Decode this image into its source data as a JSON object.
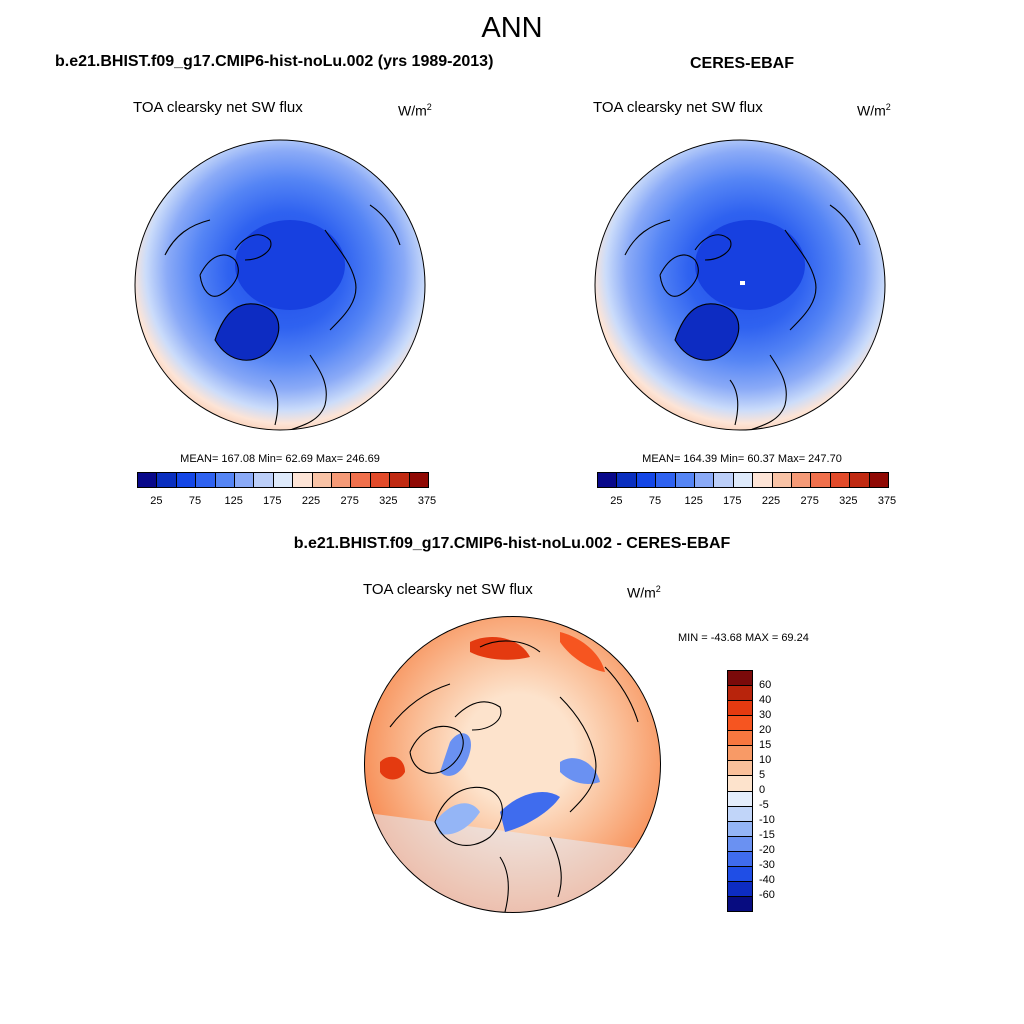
{
  "season": "ANN",
  "panels": {
    "model": {
      "title": "b.e21.BHIST.f09_g17.CMIP6-hist-noLu.002 (yrs 1989-2013)",
      "variable": "TOA clearsky net SW flux",
      "units_base": "W/m",
      "units_exp": "2",
      "stats": "MEAN= 167.08  Min=  62.69  Max= 246.69",
      "mean": 167.08,
      "min": 62.69,
      "max": 246.69
    },
    "obs": {
      "title": "CERES-EBAF",
      "variable": "TOA clearsky net SW flux",
      "units_base": "W/m",
      "units_exp": "2",
      "stats": "MEAN= 164.39  Min=  60.37  Max= 247.70",
      "mean": 164.39,
      "min": 60.37,
      "max": 247.7
    },
    "diff": {
      "title": "b.e21.BHIST.f09_g17.CMIP6-hist-noLu.002 - CERES-EBAF",
      "variable": "TOA clearsky net SW flux",
      "units_base": "W/m",
      "units_exp": "2",
      "stats": "MIN = -43.68 MAX =  69.24",
      "min": -43.68,
      "max": 69.24
    }
  },
  "abs_colorbar": {
    "colors": [
      "#08088a",
      "#0a2fbf",
      "#1446e6",
      "#2f62f0",
      "#5585f5",
      "#8aaaf7",
      "#bccff9",
      "#deeafb",
      "#fde4d6",
      "#f9c3a6",
      "#f59a77",
      "#f0704c",
      "#e04a2a",
      "#c02a12",
      "#900a05"
    ],
    "labels": [
      "25",
      "75",
      "125",
      "175",
      "225",
      "275",
      "325",
      "375"
    ]
  },
  "diff_colorbar": {
    "colors": [
      "#7a0a0a",
      "#b8240c",
      "#e43a10",
      "#f65520",
      "#f7773f",
      "#f89a66",
      "#fac09a",
      "#fde3cc",
      "#e4edfb",
      "#c1d5f9",
      "#94b5f6",
      "#6a91f2",
      "#3f6cee",
      "#1f4ee6",
      "#0d2cc2",
      "#070c80"
    ],
    "labels": [
      "60",
      "40",
      "30",
      "20",
      "15",
      "10",
      "5",
      "0",
      "-5",
      "-10",
      "-15",
      "-20",
      "-30",
      "-40",
      "-60"
    ]
  }
}
